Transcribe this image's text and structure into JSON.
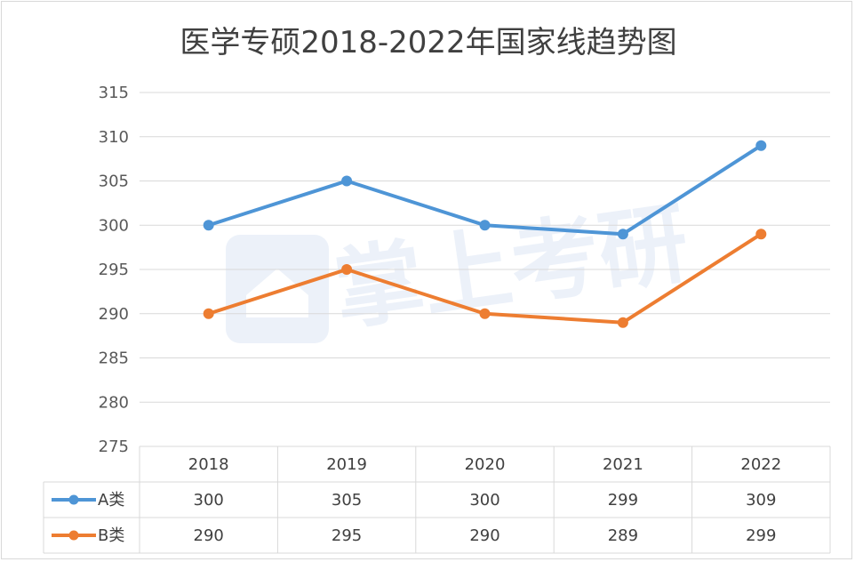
{
  "chart_data": {
    "type": "line",
    "title": "医学专硕2018-2022年国家线趋势图",
    "categories": [
      "2018",
      "2019",
      "2020",
      "2021",
      "2022"
    ],
    "series": [
      {
        "name": "A类",
        "values": [
          300,
          305,
          300,
          299,
          309
        ],
        "color": "#4e95d6"
      },
      {
        "name": "B类",
        "values": [
          290,
          295,
          290,
          289,
          299
        ],
        "color": "#ed7d31"
      }
    ],
    "yticks": [
      "315",
      "310",
      "305",
      "300",
      "295",
      "290",
      "285",
      "280",
      "275"
    ],
    "ylim": [
      275,
      315
    ],
    "grid": true,
    "legend": "data-table"
  },
  "watermark": "掌上考研"
}
